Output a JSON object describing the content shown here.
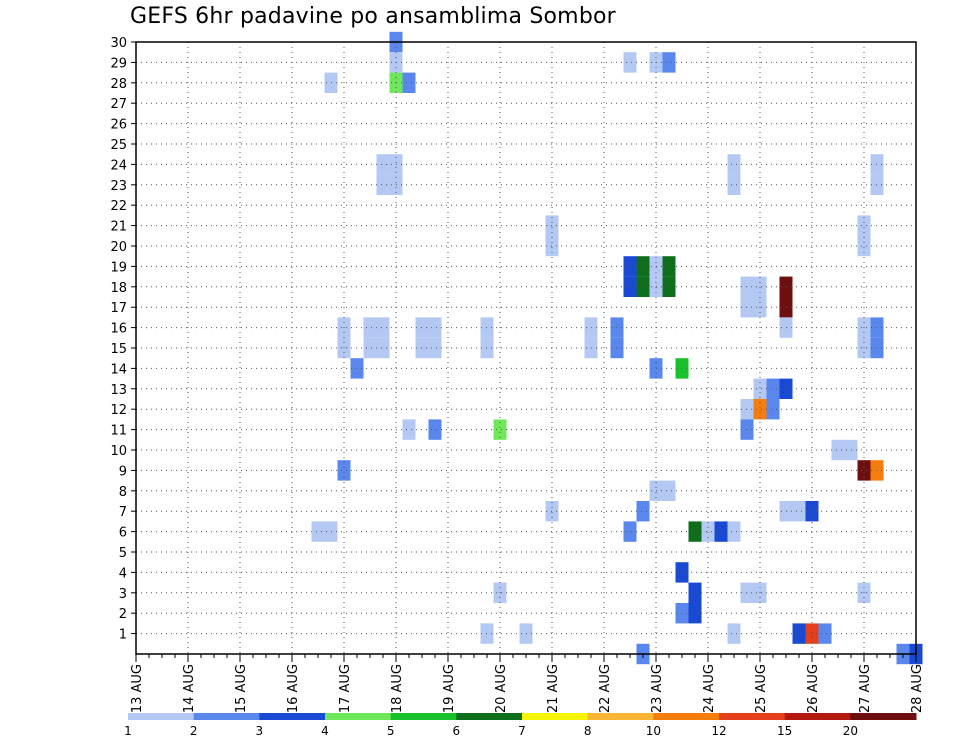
{
  "chart_data": {
    "type": "heatmap",
    "title": "GEFS 6hr padavine po ansamblima Sombor",
    "x_labels": [
      "13 AUG",
      "14 AUG",
      "15 AUG",
      "16 AUG",
      "17 AUG",
      "18 AUG",
      "19 AUG",
      "20 AUG",
      "21 AUG",
      "22 AUG",
      "23 AUG",
      "24 AUG",
      "25 AUG",
      "26 AUG",
      "27 AUG",
      "28 AUG"
    ],
    "y_labels": [
      "1",
      "2",
      "3",
      "4",
      "5",
      "6",
      "7",
      "8",
      "9",
      "10",
      "11",
      "12",
      "13",
      "14",
      "15",
      "16",
      "17",
      "18",
      "19",
      "20",
      "21",
      "22",
      "23",
      "24",
      "25",
      "26",
      "27",
      "28",
      "29",
      "30"
    ],
    "x_unit": "6-hour steps from 13 AUG",
    "ylim": [
      0,
      30
    ],
    "grid": true,
    "color_scale": {
      "labels": [
        "1",
        "2",
        "3",
        "4",
        "5",
        "6",
        "7",
        "8",
        "10",
        "12",
        "15",
        "20"
      ],
      "colors": [
        "#b4c8f4",
        "#5a87ee",
        "#1a49d4",
        "#6ee85a",
        "#19c12a",
        "#0f6e1b",
        "#f7f400",
        "#fbb535",
        "#f57d0d",
        "#e5401a",
        "#b5180e",
        "#6e0e0e"
      ]
    },
    "cells": [
      {
        "member": 30,
        "step": 20,
        "level": 2
      },
      {
        "member": 29,
        "step": 20,
        "level": 1
      },
      {
        "member": 29,
        "step": 38,
        "level": 1
      },
      {
        "member": 29,
        "step": 40,
        "level": 1
      },
      {
        "member": 29,
        "step": 41,
        "level": 2
      },
      {
        "member": 28,
        "step": 15,
        "level": 1
      },
      {
        "member": 28,
        "step": 20,
        "level": 4
      },
      {
        "member": 28,
        "step": 21,
        "level": 2
      },
      {
        "member": 24,
        "step": 19,
        "level": 1
      },
      {
        "member": 24,
        "step": 20,
        "level": 1
      },
      {
        "member": 24,
        "step": 46,
        "level": 1
      },
      {
        "member": 24,
        "step": 57,
        "level": 1
      },
      {
        "member": 23,
        "step": 19,
        "level": 1
      },
      {
        "member": 23,
        "step": 20,
        "level": 1
      },
      {
        "member": 23,
        "step": 46,
        "level": 1
      },
      {
        "member": 23,
        "step": 57,
        "level": 1
      },
      {
        "member": 21,
        "step": 32,
        "level": 1
      },
      {
        "member": 21,
        "step": 56,
        "level": 1
      },
      {
        "member": 20,
        "step": 32,
        "level": 1
      },
      {
        "member": 20,
        "step": 56,
        "level": 1
      },
      {
        "member": 19,
        "step": 38,
        "level": 3
      },
      {
        "member": 19,
        "step": 39,
        "level": 6
      },
      {
        "member": 19,
        "step": 40,
        "level": 1
      },
      {
        "member": 19,
        "step": 41,
        "level": 6
      },
      {
        "member": 18,
        "step": 38,
        "level": 3
      },
      {
        "member": 18,
        "step": 39,
        "level": 6
      },
      {
        "member": 18,
        "step": 40,
        "level": 1
      },
      {
        "member": 18,
        "step": 41,
        "level": 6
      },
      {
        "member": 18,
        "step": 47,
        "level": 1
      },
      {
        "member": 18,
        "step": 48,
        "level": 1
      },
      {
        "member": 18,
        "step": 50,
        "level": 12
      },
      {
        "member": 17,
        "step": 47,
        "level": 1
      },
      {
        "member": 17,
        "step": 48,
        "level": 1
      },
      {
        "member": 17,
        "step": 50,
        "level": 12
      },
      {
        "member": 16,
        "step": 16,
        "level": 1
      },
      {
        "member": 16,
        "step": 18,
        "level": 1
      },
      {
        "member": 16,
        "step": 19,
        "level": 1
      },
      {
        "member": 16,
        "step": 22,
        "level": 1
      },
      {
        "member": 16,
        "step": 23,
        "level": 1
      },
      {
        "member": 16,
        "step": 27,
        "level": 1
      },
      {
        "member": 16,
        "step": 35,
        "level": 1
      },
      {
        "member": 16,
        "step": 37,
        "level": 2
      },
      {
        "member": 16,
        "step": 50,
        "level": 1
      },
      {
        "member": 16,
        "step": 56,
        "level": 1
      },
      {
        "member": 16,
        "step": 57,
        "level": 2
      },
      {
        "member": 15,
        "step": 16,
        "level": 1
      },
      {
        "member": 15,
        "step": 18,
        "level": 1
      },
      {
        "member": 15,
        "step": 19,
        "level": 1
      },
      {
        "member": 15,
        "step": 22,
        "level": 1
      },
      {
        "member": 15,
        "step": 23,
        "level": 1
      },
      {
        "member": 15,
        "step": 27,
        "level": 1
      },
      {
        "member": 15,
        "step": 35,
        "level": 1
      },
      {
        "member": 15,
        "step": 37,
        "level": 2
      },
      {
        "member": 15,
        "step": 56,
        "level": 1
      },
      {
        "member": 15,
        "step": 57,
        "level": 2
      },
      {
        "member": 14,
        "step": 17,
        "level": 2
      },
      {
        "member": 14,
        "step": 40,
        "level": 2
      },
      {
        "member": 14,
        "step": 42,
        "level": 5
      },
      {
        "member": 13,
        "step": 48,
        "level": 1
      },
      {
        "member": 13,
        "step": 49,
        "level": 2
      },
      {
        "member": 13,
        "step": 50,
        "level": 3
      },
      {
        "member": 12,
        "step": 47,
        "level": 1
      },
      {
        "member": 12,
        "step": 48,
        "level": 9
      },
      {
        "member": 12,
        "step": 49,
        "level": 2
      },
      {
        "member": 11,
        "step": 21,
        "level": 1
      },
      {
        "member": 11,
        "step": 23,
        "level": 2
      },
      {
        "member": 11,
        "step": 28,
        "level": 4
      },
      {
        "member": 11,
        "step": 47,
        "level": 2
      },
      {
        "member": 10,
        "step": 54,
        "level": 1
      },
      {
        "member": 10,
        "step": 55,
        "level": 1
      },
      {
        "member": 9,
        "step": 16,
        "level": 2
      },
      {
        "member": 9,
        "step": 56,
        "level": 12
      },
      {
        "member": 9,
        "step": 57,
        "level": 9
      },
      {
        "member": 8,
        "step": 40,
        "level": 1
      },
      {
        "member": 8,
        "step": 41,
        "level": 1
      },
      {
        "member": 7,
        "step": 32,
        "level": 1
      },
      {
        "member": 7,
        "step": 39,
        "level": 2
      },
      {
        "member": 7,
        "step": 50,
        "level": 1
      },
      {
        "member": 7,
        "step": 51,
        "level": 1
      },
      {
        "member": 7,
        "step": 52,
        "level": 3
      },
      {
        "member": 6,
        "step": 14,
        "level": 1
      },
      {
        "member": 6,
        "step": 15,
        "level": 1
      },
      {
        "member": 6,
        "step": 38,
        "level": 2
      },
      {
        "member": 6,
        "step": 43,
        "level": 6
      },
      {
        "member": 6,
        "step": 44,
        "level": 1
      },
      {
        "member": 6,
        "step": 45,
        "level": 3
      },
      {
        "member": 6,
        "step": 46,
        "level": 1
      },
      {
        "member": 4,
        "step": 42,
        "level": 3
      },
      {
        "member": 3,
        "step": 28,
        "level": 1
      },
      {
        "member": 3,
        "step": 43,
        "level": 3
      },
      {
        "member": 3,
        "step": 47,
        "level": 1
      },
      {
        "member": 3,
        "step": 48,
        "level": 1
      },
      {
        "member": 3,
        "step": 56,
        "level": 1
      },
      {
        "member": 2,
        "step": 42,
        "level": 2
      },
      {
        "member": 2,
        "step": 43,
        "level": 3
      },
      {
        "member": 1,
        "step": 27,
        "level": 1
      },
      {
        "member": 1,
        "step": 30,
        "level": 1
      },
      {
        "member": 1,
        "step": 46,
        "level": 1
      },
      {
        "member": 1,
        "step": 51,
        "level": 3
      },
      {
        "member": 1,
        "step": 52,
        "level": 10
      },
      {
        "member": 1,
        "step": 53,
        "level": 2
      },
      {
        "member": 0,
        "step": 39,
        "level": 2
      },
      {
        "member": 0,
        "step": 59,
        "level": 2
      },
      {
        "member": 0,
        "step": 60,
        "level": 3
      }
    ]
  }
}
